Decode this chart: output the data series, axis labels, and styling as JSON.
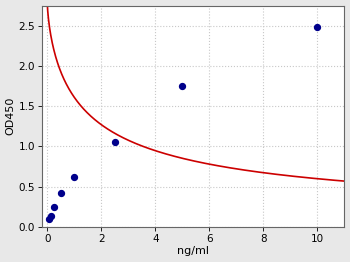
{
  "x_data": [
    0.0625,
    0.125,
    0.25,
    0.5,
    1.0,
    2.5,
    5.0,
    10.0
  ],
  "y_data": [
    0.1,
    0.13,
    0.25,
    0.42,
    0.62,
    1.05,
    1.75,
    2.48
  ],
  "xlabel": "ng/ml",
  "ylabel": "OD450",
  "xlim": [
    -0.2,
    11.0
  ],
  "ylim": [
    0.0,
    2.75
  ],
  "xticks": [
    0,
    2,
    4,
    6,
    8,
    10
  ],
  "yticks": [
    0.0,
    0.5,
    1.0,
    1.5,
    2.0,
    2.5
  ],
  "dot_color": "#00008B",
  "dot_size": 18,
  "curve_color": "#CC0000",
  "curve_linewidth": 1.2,
  "grid_color": "#C8C8C8",
  "grid_linestyle": ":",
  "grid_linewidth": 0.8,
  "bg_color": "#E8E8E8",
  "axes_bg_color": "#FFFFFF",
  "label_fontsize": 8,
  "tick_fontsize": 7.5,
  "spine_color": "#666666",
  "4pl_A": 2.78,
  "4pl_B": 0.72,
  "4pl_C": 1.5,
  "4pl_D": 0.04
}
